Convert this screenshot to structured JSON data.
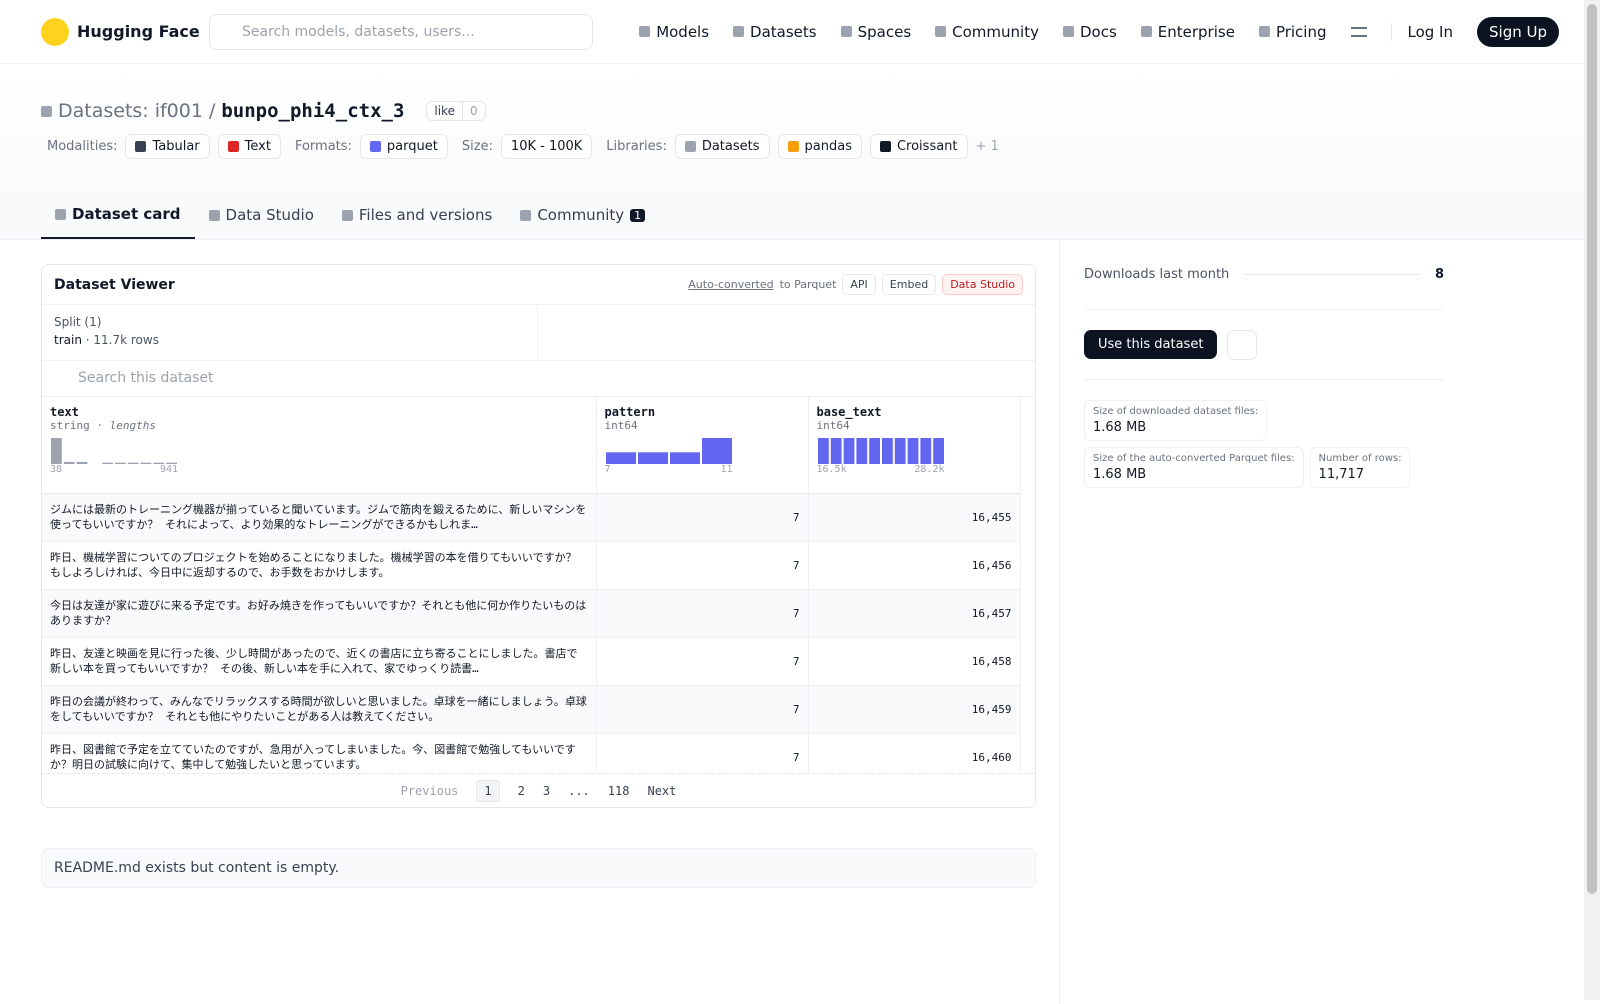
{
  "nav": {
    "brand": "Hugging Face",
    "search_placeholder": "Search models, datasets, users...",
    "links": [
      "Models",
      "Datasets",
      "Spaces",
      "Community",
      "Docs",
      "Enterprise",
      "Pricing"
    ],
    "login": "Log In",
    "signup": "Sign Up"
  },
  "repo": {
    "kind": "Datasets:",
    "owner": "if001",
    "separator": "/",
    "name": "bunpo_phi4_ctx_3",
    "like": "like",
    "likes": "0"
  },
  "tags": [
    {
      "label": "Modalities:",
      "items": [
        "Tabular",
        "Text"
      ]
    },
    {
      "label": "Formats:",
      "items": [
        "parquet"
      ]
    },
    {
      "label": "Size:",
      "items": [
        "10K - 100K"
      ]
    },
    {
      "label": "Libraries:",
      "items": [
        "Datasets",
        "pandas",
        "Croissant"
      ]
    }
  ],
  "more_libraries": "+ 1",
  "tabs": [
    {
      "label": "Dataset card"
    },
    {
      "label": "Data Studio"
    },
    {
      "label": "Files and versions"
    },
    {
      "label": "Community",
      "badge": "1"
    }
  ],
  "viewer": {
    "title": "Dataset Viewer",
    "auto_converted": "Auto-converted",
    "to_parquet": "to Parquet",
    "buttons": [
      "API",
      "Embed",
      "Data Studio"
    ],
    "split_label": "Split (1)",
    "split": "train",
    "row_count": "11.7k rows",
    "search_placeholder": "Search this dataset",
    "columns": [
      {
        "name": "text",
        "dtype": "string",
        "note": "lengths",
        "histogram": [
          100,
          8,
          8,
          0,
          5,
          5,
          5,
          5,
          5,
          5
        ],
        "range": [
          "38",
          "941"
        ]
      },
      {
        "name": "pattern",
        "dtype": "int64",
        "histogram": [
          45,
          45,
          45,
          100
        ],
        "range": [
          "7",
          "11"
        ]
      },
      {
        "name": "base_text",
        "dtype": "int64",
        "histogram": [
          100,
          100,
          100,
          100,
          100,
          100,
          100,
          100,
          100,
          100
        ],
        "range": [
          "16.5k",
          "28.2k"
        ]
      }
    ],
    "table_rows": [
      [
        "ジムには最新のトレーニング機器が揃っていると聞いています。ジムで筋肉を鍛えるために、新しいマシンを使ってもいいですか？ それによって、より効果的なトレーニングができるかもしれま…",
        "7",
        "16,455"
      ],
      [
        "昨日、機械学習についてのプロジェクトを始めることになりました。機械学習の本を借りてもいいですか？もしよろしければ、今日中に返却するので、お手数をおかけします。",
        "7",
        "16,456"
      ],
      [
        "今日は友達が家に遊びに来る予定です。お好み焼きを作ってもいいですか？それとも他に何か作りたいものはありますか？",
        "7",
        "16,457"
      ],
      [
        "昨日、友達と映画を見に行った後、少し時間があったので、近くの書店に立ち寄ることにしました。書店で新しい本を買ってもいいですか？ その後、新しい本を手に入れて、家でゆっくり読書…",
        "7",
        "16,458"
      ],
      [
        "昨日の会議が終わって、みんなでリラックスする時間が欲しいと思いました。卓球を一緒にしましょう。卓球をしてもいいですか？ それとも他にやりたいことがある人は教えてください。",
        "7",
        "16,459"
      ],
      [
        "昨日、図書館で予定を立てていたのですが、急用が入ってしまいました。今、図書館で勉強してもいいですか？明日の試験に向けて、集中して勉強したいと思っています。",
        "7",
        "16,460"
      ]
    ],
    "pagination": {
      "previous": "Previous",
      "pages": [
        "1",
        "2",
        "3",
        "...",
        "118"
      ],
      "next": "Next"
    }
  },
  "readme": "README.md exists but content is empty.",
  "sidebar": {
    "downloads_label": "Downloads last month",
    "downloads": "8",
    "use_button": "Use this dataset",
    "stats": [
      {
        "label": "Size of downloaded dataset files:",
        "value": "1.68 MB"
      },
      {
        "label": "Size of the auto-converted Parquet files:",
        "value": "1.68 MB"
      },
      {
        "label": "Number of rows:",
        "value": "11,717"
      }
    ]
  }
}
